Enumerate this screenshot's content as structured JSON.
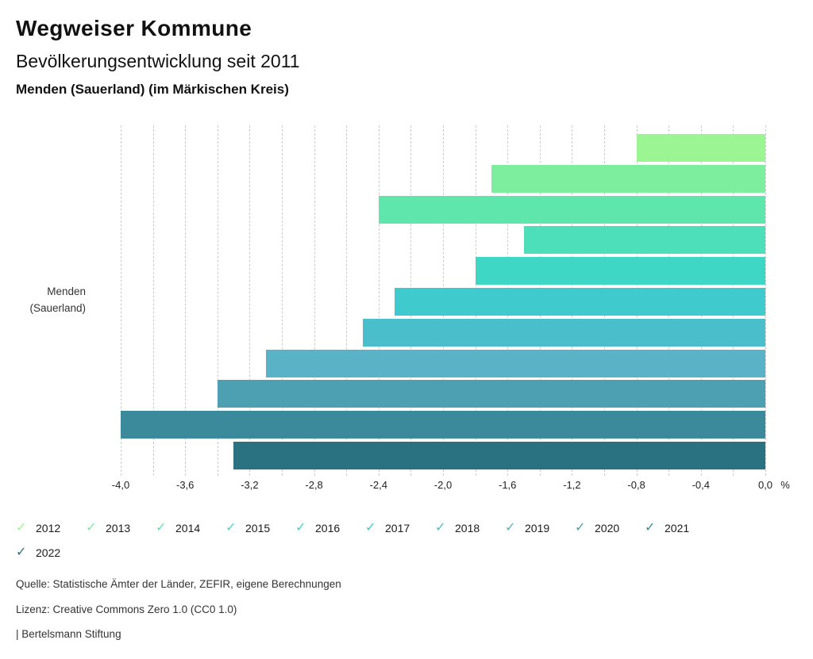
{
  "header": {
    "title": "Wegweiser Kommune",
    "subtitle": "Bevölkerungsentwicklung seit 2011",
    "location": "Menden (Sauerland) (im Märkischen Kreis)"
  },
  "chart_data": {
    "type": "bar",
    "orientation": "horizontal",
    "title": "Bevölkerungsentwicklung seit 2011",
    "category_label_lines": [
      "Menden",
      "(Sauerland)"
    ],
    "unit": "%",
    "xlim": [
      -4.0,
      0.0
    ],
    "grid_step": 0.2,
    "tick_step": 0.4,
    "xticks": [
      "-4,0",
      "-3,6",
      "-3,2",
      "-2,8",
      "-2,4",
      "-2,0",
      "-1,6",
      "-1,2",
      "-0,8",
      "-0,4",
      "0,0"
    ],
    "grid": true,
    "legend_position": "bottom",
    "series": [
      {
        "name": "2012",
        "value": -0.8,
        "color": "#9cf593"
      },
      {
        "name": "2013",
        "value": -1.7,
        "color": "#7cee9e"
      },
      {
        "name": "2014",
        "value": -2.4,
        "color": "#5ee6ac"
      },
      {
        "name": "2015",
        "value": -1.5,
        "color": "#4cdfba"
      },
      {
        "name": "2016",
        "value": -1.8,
        "color": "#3ed6c5"
      },
      {
        "name": "2017",
        "value": -2.3,
        "color": "#3fcbcd"
      },
      {
        "name": "2018",
        "value": -2.5,
        "color": "#4abecb"
      },
      {
        "name": "2019",
        "value": -3.1,
        "color": "#5ab2c6"
      },
      {
        "name": "2020",
        "value": -3.4,
        "color": "#4d9fb2"
      },
      {
        "name": "2021",
        "value": -4.0,
        "color": "#3a8a9b"
      },
      {
        "name": "2022",
        "value": -3.3,
        "color": "#2a7282"
      }
    ]
  },
  "legend": {
    "check_glyph": "✓",
    "items_per_first_row": 10
  },
  "footer": {
    "source": "Quelle: Statistische Ämter der Länder, ZEFIR, eigene Berechnungen",
    "license": "Lizenz: Creative Commons Zero 1.0 (CC0 1.0)",
    "brand": "| Bertelsmann Stiftung"
  }
}
